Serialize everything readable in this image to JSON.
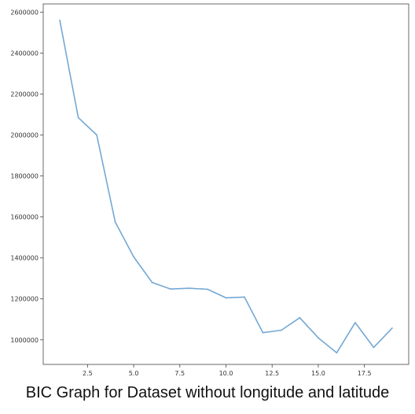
{
  "caption": "BIC Graph for Dataset without longitude and latitude",
  "chart_data": {
    "type": "line",
    "title": "",
    "xlabel": "",
    "ylabel": "",
    "xlim": [
      0.1,
      19.9
    ],
    "ylim": [
      880000,
      2640000
    ],
    "x_ticks": [
      2.5,
      5.0,
      7.5,
      10.0,
      12.5,
      15.0,
      17.5
    ],
    "x_tick_labels": [
      "2.5",
      "5.0",
      "7.5",
      "10.0",
      "12.5",
      "15.0",
      "17.5"
    ],
    "y_ticks": [
      1000000,
      1200000,
      1400000,
      1600000,
      1800000,
      2000000,
      2200000,
      2400000,
      2600000
    ],
    "y_tick_labels": [
      "1000000",
      "1200000",
      "1400000",
      "1600000",
      "1800000",
      "2000000",
      "2200000",
      "2400000",
      "2600000"
    ],
    "grid": false,
    "line_color": "#74a8d4",
    "series": [
      {
        "x": [
          1,
          2,
          3,
          4,
          5,
          6,
          7,
          8,
          9,
          10,
          11,
          12,
          13,
          14,
          15,
          16,
          17,
          18,
          19
        ],
        "values": [
          2560000,
          2085000,
          2000000,
          1575000,
          1405000,
          1280000,
          1248000,
          1252000,
          1247000,
          1205000,
          1209000,
          1035000,
          1047000,
          1108000,
          1010000,
          937000,
          1084000,
          963000,
          1057000
        ]
      }
    ]
  }
}
